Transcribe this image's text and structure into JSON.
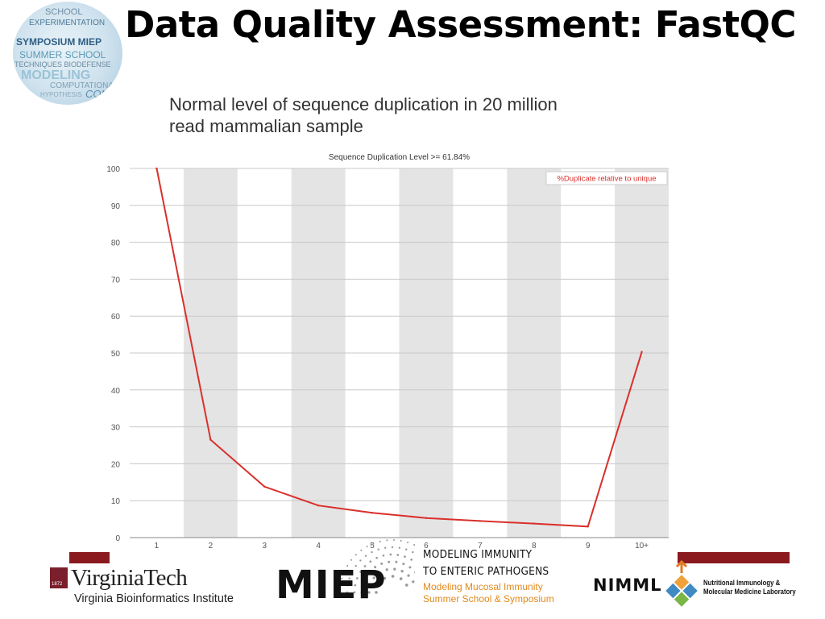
{
  "slide": {
    "title": "Data Quality Assessment: FastQC",
    "subtitle_line1": "Normal level of sequence duplication in 20 million",
    "subtitle_line2": "read mammalian sample"
  },
  "corner_logo": {
    "words": [
      "SCHOOL",
      "EXPERIMENTATION",
      "SYMPOSIUM MIEP",
      "SUMMER SCHOOL",
      "TECHNIQUES BIODEFENSE",
      "MODELING",
      "COMPUTATIONAL",
      "HYPOTHESIS",
      "COMP"
    ]
  },
  "chart_data": {
    "type": "line",
    "title": "Sequence Duplication Level >= 61.84%",
    "categories": [
      "1",
      "2",
      "3",
      "4",
      "5",
      "6",
      "7",
      "8",
      "9",
      "10+"
    ],
    "series": [
      {
        "name": "%Duplicate relative to unique",
        "values": [
          100,
          26.5,
          13.8,
          8.7,
          6.7,
          5.3,
          4.5,
          3.8,
          3.0,
          50.3
        ],
        "color": "#d9302c"
      }
    ],
    "ylim": [
      0,
      100
    ],
    "yticks": [
      0,
      10,
      20,
      30,
      40,
      50,
      60,
      70,
      80,
      90,
      100
    ],
    "grid": true,
    "legend_position": "top-right",
    "band_color": "#e4e4e4"
  },
  "footer": {
    "vt_name": "VirginiaTech",
    "vt_year": "1872",
    "vt_institute": "Virginia Bioinformatics Institute",
    "miep": "MIEP",
    "miep_line1": "MODELING IMMUNITY",
    "miep_line2": "TO ENTERIC PATHOGENS",
    "miep_line3": "Modeling Mucosal Immunity",
    "miep_line4": "Summer School & Symposium",
    "nimml": "NIMML",
    "nimml_sub1": "Nutritional Immunology &",
    "nimml_sub2": "Molecular Medicine Laboratory",
    "accent_color": "#8b1a1f",
    "orange": "#e08a1e"
  }
}
